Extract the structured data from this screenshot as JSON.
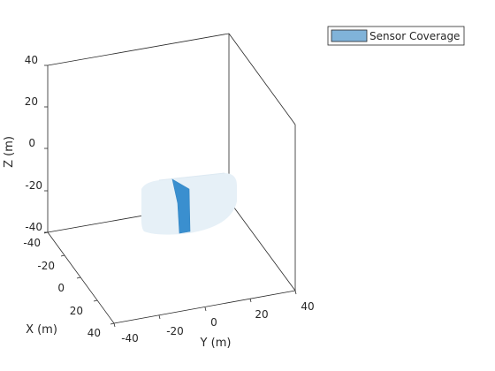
{
  "chart_data": {
    "type": "3d-surface",
    "xlabel": "X (m)",
    "ylabel": "Y (m)",
    "zlabel": "Z (m)",
    "xticks": [
      "-40",
      "-20",
      "0",
      "20",
      "40"
    ],
    "yticks": [
      "-40",
      "-20",
      "0",
      "20",
      "40"
    ],
    "zticks": [
      "-40",
      "-20",
      "0",
      "20",
      "40"
    ],
    "xlim": [
      -40,
      40
    ],
    "ylim": [
      -40,
      40
    ],
    "zlim": [
      -40,
      40
    ],
    "grid": false,
    "legend": {
      "placement": "top-right",
      "entries": [
        {
          "label": "Sensor Coverage",
          "color": "#80b3d9"
        }
      ]
    },
    "series": [
      {
        "name": "Sensor Coverage",
        "kind": "coverage-volume",
        "color": "#e6f0f7",
        "x_range": [
          -10,
          20
        ],
        "y_range": [
          -25,
          10
        ],
        "z_range": [
          -40,
          -20
        ]
      },
      {
        "name": "Sensor Coverage",
        "kind": "coverage-surface",
        "color": "#3a8fcf",
        "x_range": [
          -5,
          5
        ],
        "y_range": [
          -15,
          -12
        ],
        "z_range": [
          -40,
          -20
        ]
      }
    ]
  }
}
